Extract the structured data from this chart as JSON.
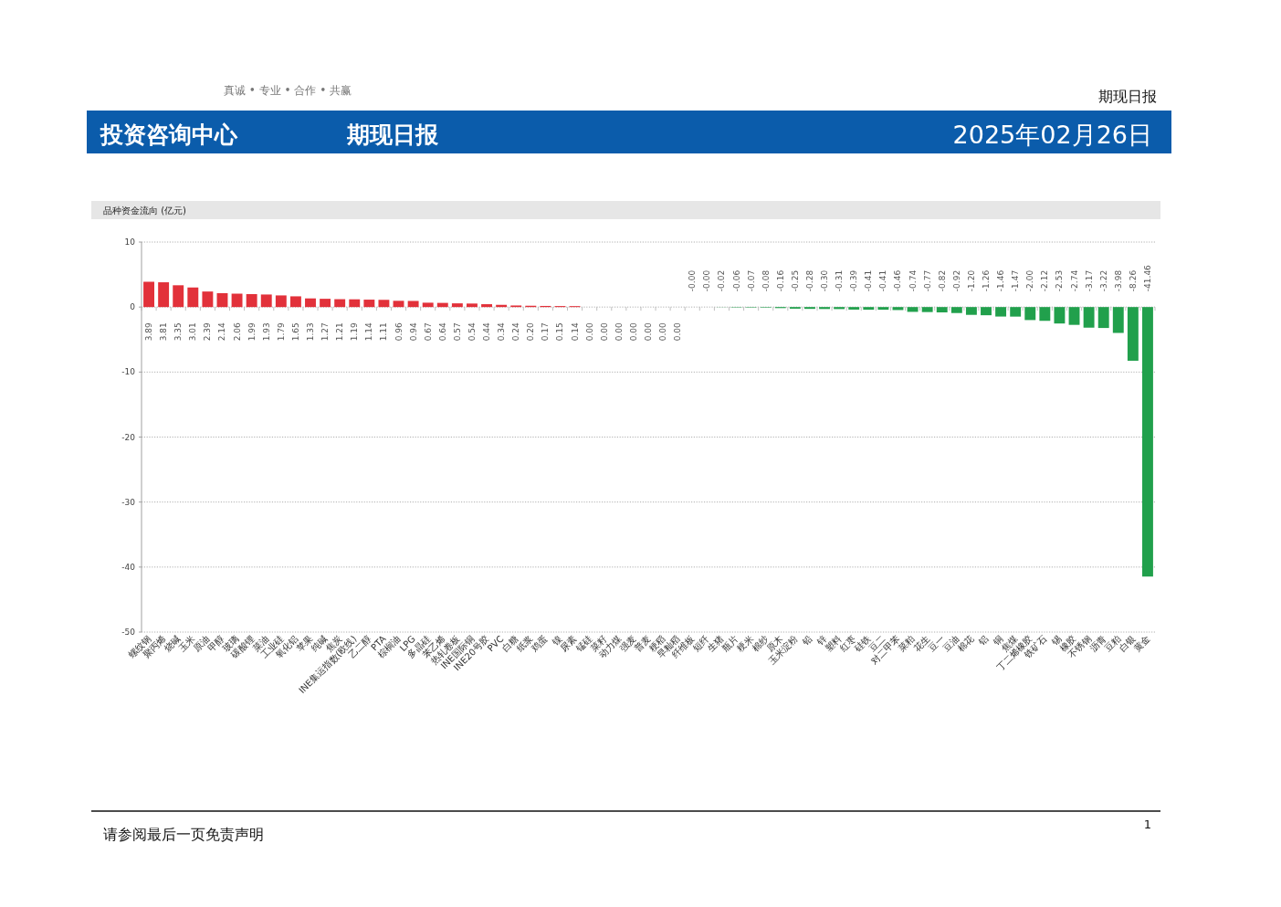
{
  "chart_data": {
    "type": "bar",
    "title": "品种资金流向 (亿元)",
    "categories": [
      "螺纹钢",
      "聚丙烯",
      "烧碱",
      "玉米",
      "原油",
      "甲醇",
      "玻璃",
      "碳酸锂",
      "菜油",
      "工业硅",
      "氧化铝",
      "苹果",
      "纯碱",
      "焦炭",
      "INE集运指数(欧线)",
      "乙二醇",
      "PTA",
      "棕榈油",
      "LPG",
      "多晶硅",
      "苯乙烯",
      "热轧卷板",
      "INE国际铜",
      "INE20号胶",
      "PVC",
      "白糖",
      "纸浆",
      "鸡蛋",
      "镍",
      "尿素",
      "锰硅",
      "菜籽",
      "动力煤",
      "强麦",
      "普麦",
      "粳稻",
      "早籼稻",
      "纤维板",
      "短纤",
      "生猪",
      "瓶片",
      "粳米",
      "棉纱",
      "原木",
      "玉米淀粉",
      "铅",
      "锌",
      "塑料",
      "红枣",
      "硅铁",
      "豆二",
      "对二甲苯",
      "菜粕",
      "花生",
      "豆一",
      "豆油",
      "棉花",
      "铝",
      "铜",
      "焦煤",
      "丁二烯橡胶",
      "铁矿石",
      "锡",
      "橡胶",
      "不锈钢",
      "沥青",
      "豆粕",
      "白银",
      "黄金"
    ],
    "values": [
      3.89,
      3.81,
      3.35,
      3.01,
      2.39,
      2.14,
      2.06,
      1.99,
      1.93,
      1.79,
      1.65,
      1.33,
      1.27,
      1.21,
      1.19,
      1.14,
      1.11,
      0.96,
      0.94,
      0.67,
      0.64,
      0.57,
      0.54,
      0.44,
      0.34,
      0.24,
      0.2,
      0.17,
      0.15,
      0.14,
      0,
      0,
      0,
      0,
      0,
      0,
      0,
      0,
      0,
      -0.02,
      -0.06,
      -0.07,
      -0.08,
      -0.16,
      -0.25,
      -0.28,
      -0.3,
      -0.31,
      -0.39,
      -0.41,
      -0.41,
      -0.46,
      -0.74,
      -0.77,
      -0.82,
      -0.92,
      -1.2,
      -1.26,
      -1.46,
      -1.47,
      -2.0,
      -2.12,
      -2.53,
      -2.74,
      -3.17,
      -3.22,
      -3.98,
      -8.26,
      -41.46
    ],
    "value_labels": [
      "3.89",
      "3.81",
      "3.35",
      "3.01",
      "2.39",
      "2.14",
      "2.06",
      "1.99",
      "1.93",
      "1.79",
      "1.65",
      "1.33",
      "1.27",
      "1.21",
      "1.19",
      "1.14",
      "1.11",
      "0.96",
      "0.94",
      "0.67",
      "0.64",
      "0.57",
      "0.54",
      "0.44",
      "0.34",
      "0.24",
      "0.20",
      "0.17",
      "0.15",
      "0.14",
      "0.00",
      "0.00",
      "0.00",
      "0.00",
      "0.00",
      "0.00",
      "0.00",
      "-0.00",
      "-0.00",
      "-0.02",
      "-0.06",
      "-0.07",
      "-0.08",
      "-0.16",
      "-0.25",
      "-0.28",
      "-0.30",
      "-0.31",
      "-0.39",
      "-0.41",
      "-0.41",
      "-0.46",
      "-0.74",
      "-0.77",
      "-0.82",
      "-0.92",
      "-1.20",
      "-1.26",
      "-1.46",
      "-1.47",
      "-2.00",
      "-2.12",
      "-2.53",
      "-2.74",
      "-3.17",
      "-3.22",
      "-3.98",
      "-8.26",
      "-41.46"
    ],
    "colors": [
      "#e2313a",
      "#e2313a",
      "#e2313a",
      "#e2313a",
      "#e2313a",
      "#e2313a",
      "#e2313a",
      "#e2313a",
      "#e2313a",
      "#e2313a",
      "#e2313a",
      "#e2313a",
      "#e2313a",
      "#e2313a",
      "#e2313a",
      "#e2313a",
      "#e2313a",
      "#e2313a",
      "#e2313a",
      "#e2313a",
      "#e2313a",
      "#e2313a",
      "#e2313a",
      "#e2313a",
      "#e2313a",
      "#e2313a",
      "#e2313a",
      "#e2313a",
      "#e2313a",
      "#e2313a",
      "#e2313a",
      "#e2313a",
      "#e2313a",
      "#e2313a",
      "#e2313a",
      "#e2313a",
      "#e2313a",
      "#21a04c",
      "#21a04c",
      "#21a04c",
      "#21a04c",
      "#21a04c",
      "#21a04c",
      "#21a04c",
      "#21a04c",
      "#21a04c",
      "#21a04c",
      "#21a04c",
      "#21a04c",
      "#21a04c",
      "#21a04c",
      "#21a04c",
      "#21a04c",
      "#21a04c",
      "#21a04c",
      "#21a04c",
      "#21a04c",
      "#21a04c",
      "#21a04c",
      "#21a04c",
      "#21a04c",
      "#21a04c",
      "#21a04c",
      "#21a04c",
      "#21a04c",
      "#21a04c",
      "#21a04c",
      "#21a04c",
      "#21a04c"
    ],
    "ylim": [
      -50,
      10
    ],
    "yticks": [
      10,
      0,
      -10,
      -20,
      -30,
      -40,
      -50
    ],
    "grid": "y",
    "annotations": [
      "期现日报",
      "投资咨询中心",
      "期现日报",
      "2025年02月26日",
      "请参阅最后一页免责声明",
      "1",
      "真诚 • 专业 • 合作 • 共赢"
    ]
  }
}
